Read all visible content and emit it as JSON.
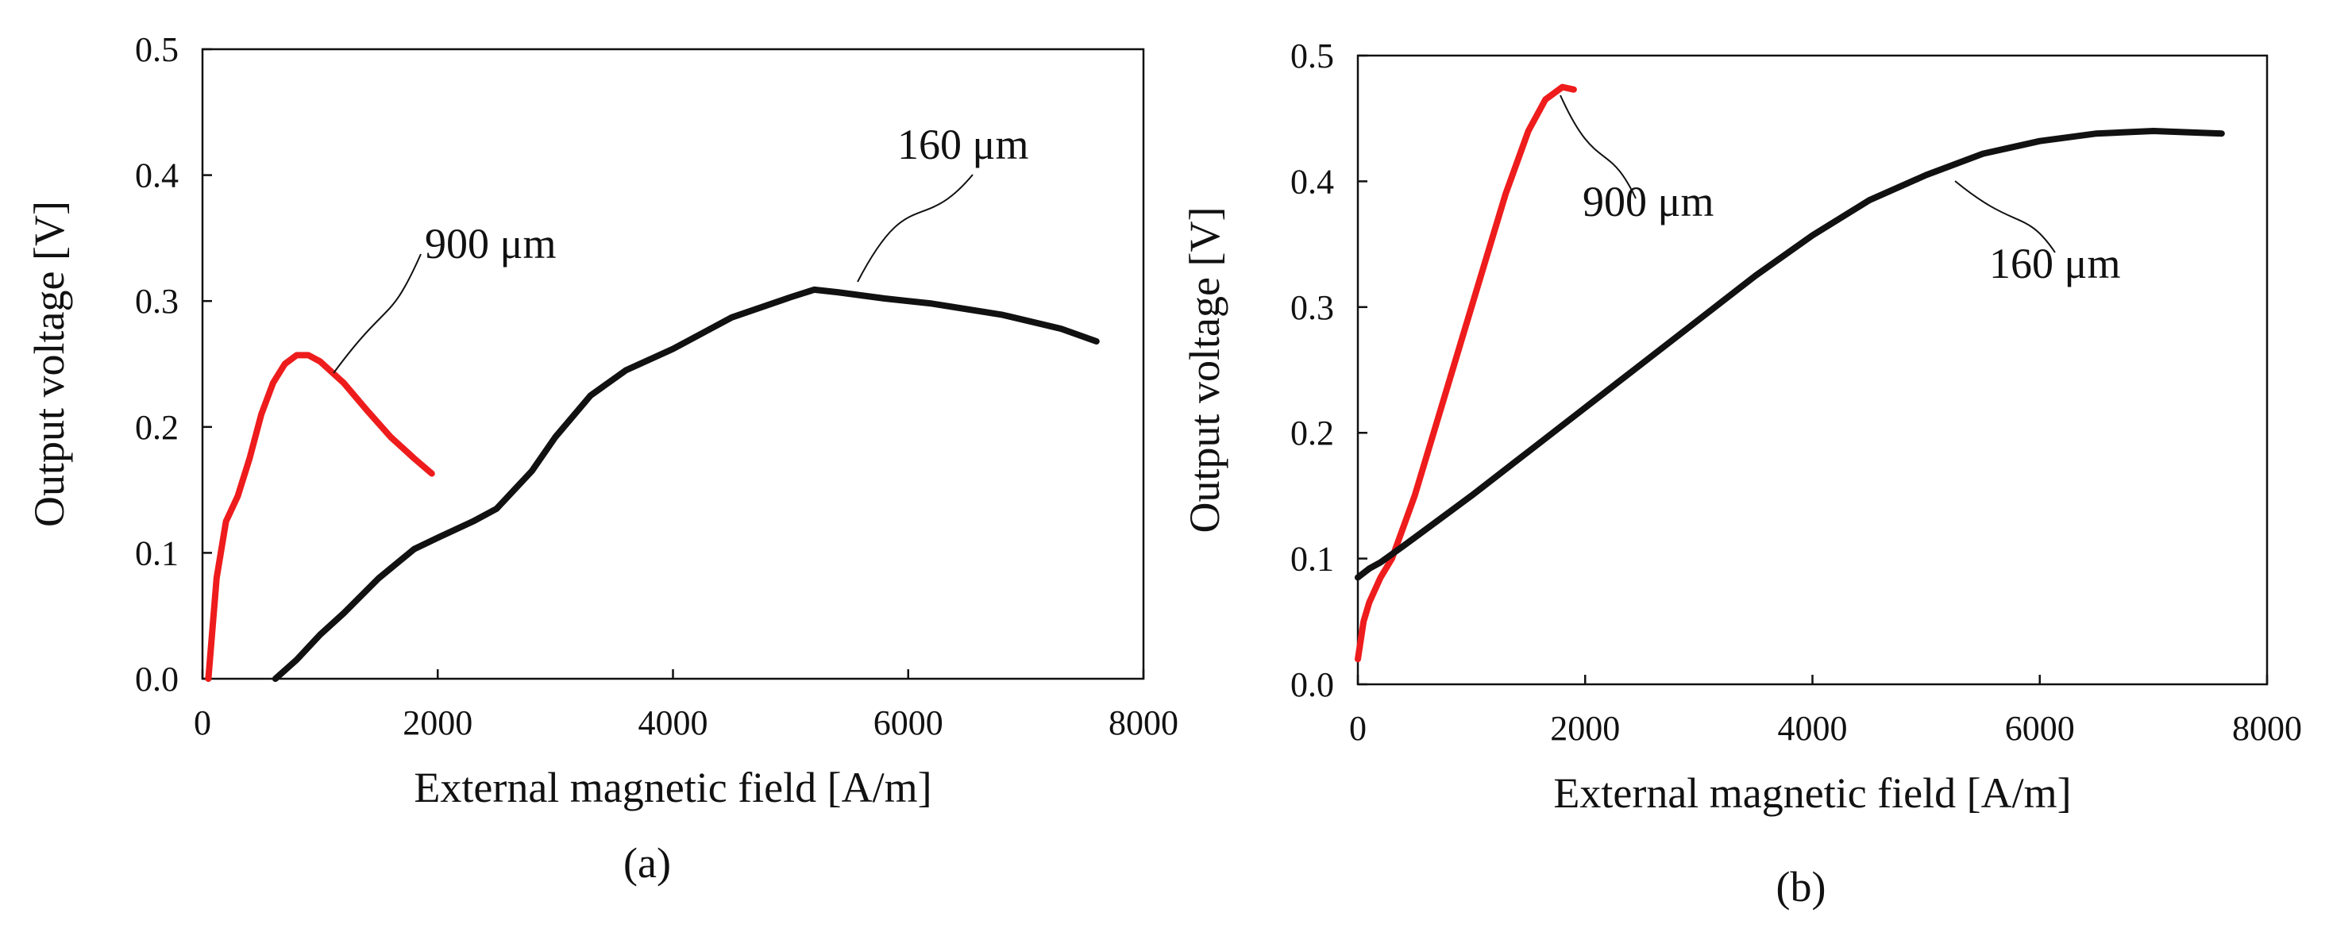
{
  "colors": {
    "series_900": "#ee1c1c",
    "series_160": "#111111",
    "axis": "#111111",
    "text": "#111111"
  },
  "chart_data": [
    {
      "type": "line",
      "panel_label": "(a)",
      "title": "",
      "xlabel": "External magnetic field [A/m]",
      "ylabel": "Output voltage [V]",
      "xlim": [
        0,
        8000
      ],
      "ylim": [
        0,
        0.5
      ],
      "xticks": [
        0,
        2000,
        4000,
        6000,
        8000
      ],
      "xtick_labels": [
        "0",
        "2000",
        "4000",
        "6000",
        "8000"
      ],
      "yticks": [
        0,
        0.1,
        0.2,
        0.3,
        0.4,
        0.5
      ],
      "ytick_labels": [
        "0.0",
        "0.1",
        "0.2",
        "0.3",
        "0.4",
        "0.5"
      ],
      "grid": false,
      "series": [
        {
          "name": "900 μm",
          "color": "#ee1c1c",
          "x": [
            50,
            120,
            200,
            300,
            400,
            500,
            600,
            700,
            800,
            900,
            1000,
            1200,
            1400,
            1600,
            1800,
            1950
          ],
          "y": [
            0.0,
            0.08,
            0.125,
            0.145,
            0.175,
            0.21,
            0.235,
            0.25,
            0.257,
            0.257,
            0.252,
            0.235,
            0.213,
            0.192,
            0.175,
            0.163
          ]
        },
        {
          "name": "160 μm",
          "color": "#111111",
          "x": [
            620,
            800,
            1000,
            1200,
            1500,
            1800,
            2000,
            2300,
            2500,
            2800,
            3000,
            3300,
            3600,
            4000,
            4500,
            5000,
            5200,
            5400,
            5800,
            6200,
            6800,
            7300,
            7600
          ],
          "y": [
            0.0,
            0.015,
            0.035,
            0.052,
            0.08,
            0.103,
            0.112,
            0.125,
            0.135,
            0.165,
            0.192,
            0.225,
            0.245,
            0.262,
            0.287,
            0.303,
            0.309,
            0.307,
            0.302,
            0.298,
            0.289,
            0.278,
            0.268
          ]
        }
      ],
      "annotations": [
        {
          "text": "900 μm",
          "series": "900 μm",
          "at_x": 1150,
          "at_y": 0.245
        },
        {
          "text": "160 μm",
          "series": "160 μm",
          "at_x": 5700,
          "at_y": 0.31
        }
      ]
    },
    {
      "type": "line",
      "panel_label": "(b)",
      "title": "",
      "xlabel": "External magnetic field [A/m]",
      "ylabel": "Output voltage [V]",
      "xlim": [
        0,
        8000
      ],
      "ylim": [
        0,
        0.5
      ],
      "xticks": [
        0,
        2000,
        4000,
        6000,
        8000
      ],
      "xtick_labels": [
        "0",
        "2000",
        "4000",
        "6000",
        "8000"
      ],
      "yticks": [
        0,
        0.1,
        0.2,
        0.3,
        0.4,
        0.5
      ],
      "ytick_labels": [
        "0.0",
        "0.1",
        "0.2",
        "0.3",
        "0.4",
        "0.5"
      ],
      "grid": false,
      "series": [
        {
          "name": "900 μm",
          "color": "#ee1c1c",
          "x": [
            0,
            50,
            100,
            200,
            300,
            500,
            700,
            900,
            1100,
            1300,
            1500,
            1650,
            1800,
            1900
          ],
          "y": [
            0.02,
            0.05,
            0.065,
            0.085,
            0.1,
            0.15,
            0.21,
            0.27,
            0.33,
            0.39,
            0.44,
            0.465,
            0.475,
            0.473
          ]
        },
        {
          "name": "160 μm",
          "color": "#111111",
          "x": [
            0,
            100,
            200,
            400,
            700,
            1000,
            1500,
            2000,
            2500,
            3000,
            3500,
            4000,
            4500,
            5000,
            5500,
            6000,
            6500,
            7000,
            7300,
            7600
          ],
          "y": [
            0.085,
            0.092,
            0.097,
            0.11,
            0.13,
            0.15,
            0.185,
            0.22,
            0.255,
            0.29,
            0.325,
            0.357,
            0.385,
            0.405,
            0.422,
            0.432,
            0.438,
            0.44,
            0.439,
            0.438
          ]
        }
      ],
      "annotations": [
        {
          "text": "900 μm",
          "series": "900 μm",
          "at_x": 1800,
          "at_y": 0.47
        },
        {
          "text": "160 μm",
          "series": "160 μm",
          "at_x": 5300,
          "at_y": 0.405
        }
      ]
    }
  ]
}
